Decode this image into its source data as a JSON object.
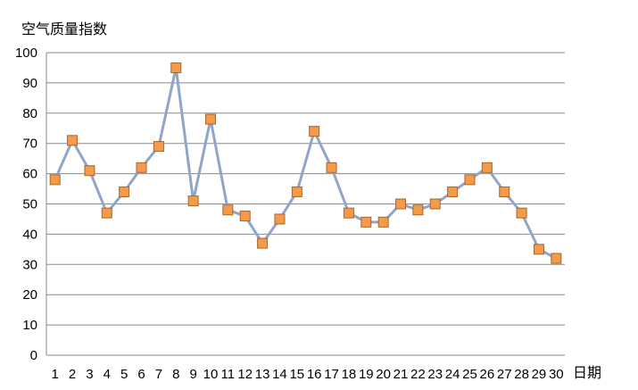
{
  "chart_data": {
    "type": "line",
    "title": "",
    "xlabel": "日期",
    "ylabel": "空气质量指数",
    "x": [
      1,
      2,
      3,
      4,
      5,
      6,
      7,
      8,
      9,
      10,
      11,
      12,
      13,
      14,
      15,
      16,
      17,
      18,
      19,
      20,
      21,
      22,
      23,
      24,
      25,
      26,
      27,
      28,
      29,
      30
    ],
    "series": [
      {
        "values": [
          58,
          71,
          61,
          47,
          54,
          62,
          69,
          95,
          51,
          78,
          48,
          46,
          37,
          45,
          54,
          74,
          62,
          47,
          44,
          44,
          50,
          48,
          50,
          54,
          58,
          62,
          54,
          47,
          35,
          32
        ]
      }
    ],
    "ylim": [
      0,
      100
    ],
    "yticks": [
      0,
      10,
      20,
      30,
      40,
      50,
      60,
      70,
      80,
      90,
      100
    ],
    "grid": true,
    "legend": "none",
    "colors": {
      "line": "#8fa6c9",
      "marker_fill": "#f59a4b",
      "marker_stroke": "#a6672e",
      "grid": "#8a8a8a"
    }
  }
}
